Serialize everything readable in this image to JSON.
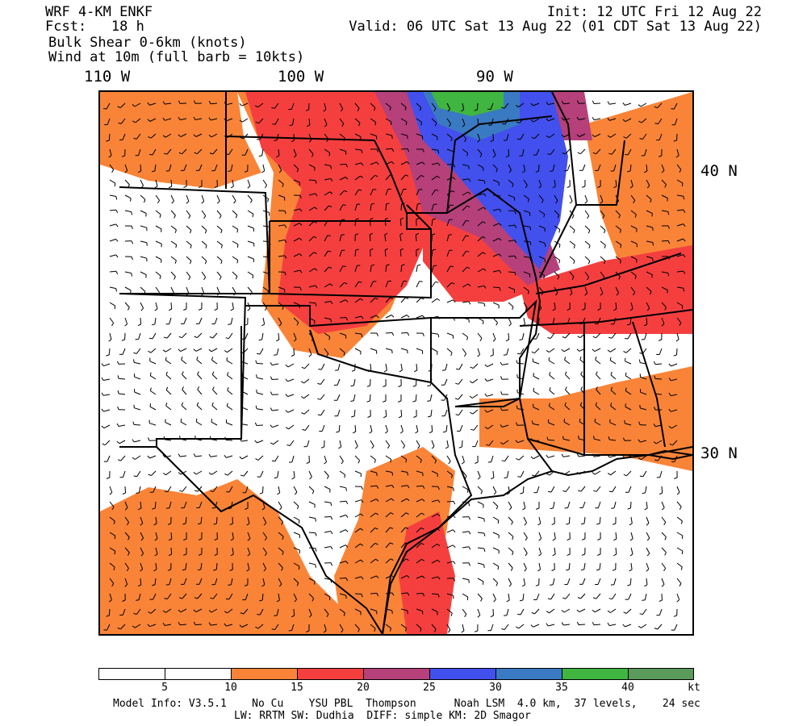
{
  "header": {
    "model": "WRF 4-KM ENKF",
    "fcst": "Fcst:   18 h",
    "field": "Bulk Shear 0-6km (knots)",
    "wind": "Wind at 10m (full barb = 10kts)",
    "init": "Init: 12 UTC Fri 12 Aug 22",
    "valid": "Valid: 06 UTC Sat 13 Aug 22 (01 CDT Sat 13 Aug 22)"
  },
  "map": {
    "lon_labels": [
      "110 W",
      "100 W",
      "90 W"
    ],
    "lat_labels": [
      "40 N",
      "30 N"
    ],
    "shading_colors": {
      "5-10": "#ffffff",
      "10-15": "#f98437",
      "15-20": "#f53f3f",
      "20-25": "#b5407a",
      "25-30": "#4250ee",
      "30-35": "#3a7ac2",
      "35-40": "#40b540",
      "40+": "#5a9a5a"
    }
  },
  "colorbar": {
    "colors": [
      "#ffffff",
      "#ffffff",
      "#f98437",
      "#f53f3f",
      "#b5407a",
      "#4250ee",
      "#3a7ac2",
      "#40b540",
      "#5a9a5a"
    ],
    "labels": [
      "5",
      "10",
      "15",
      "20",
      "25",
      "30",
      "35",
      "40",
      "kt"
    ]
  },
  "footer": {
    "line1": "Model Info: V3.5.1    No Cu    YSU PBL  Thompson      Noah LSM  4.0 km,  37 levels,    24 sec",
    "line2": "LW: RRTM SW: Dudhia  DIFF: simple KM: 2D Smagor"
  }
}
